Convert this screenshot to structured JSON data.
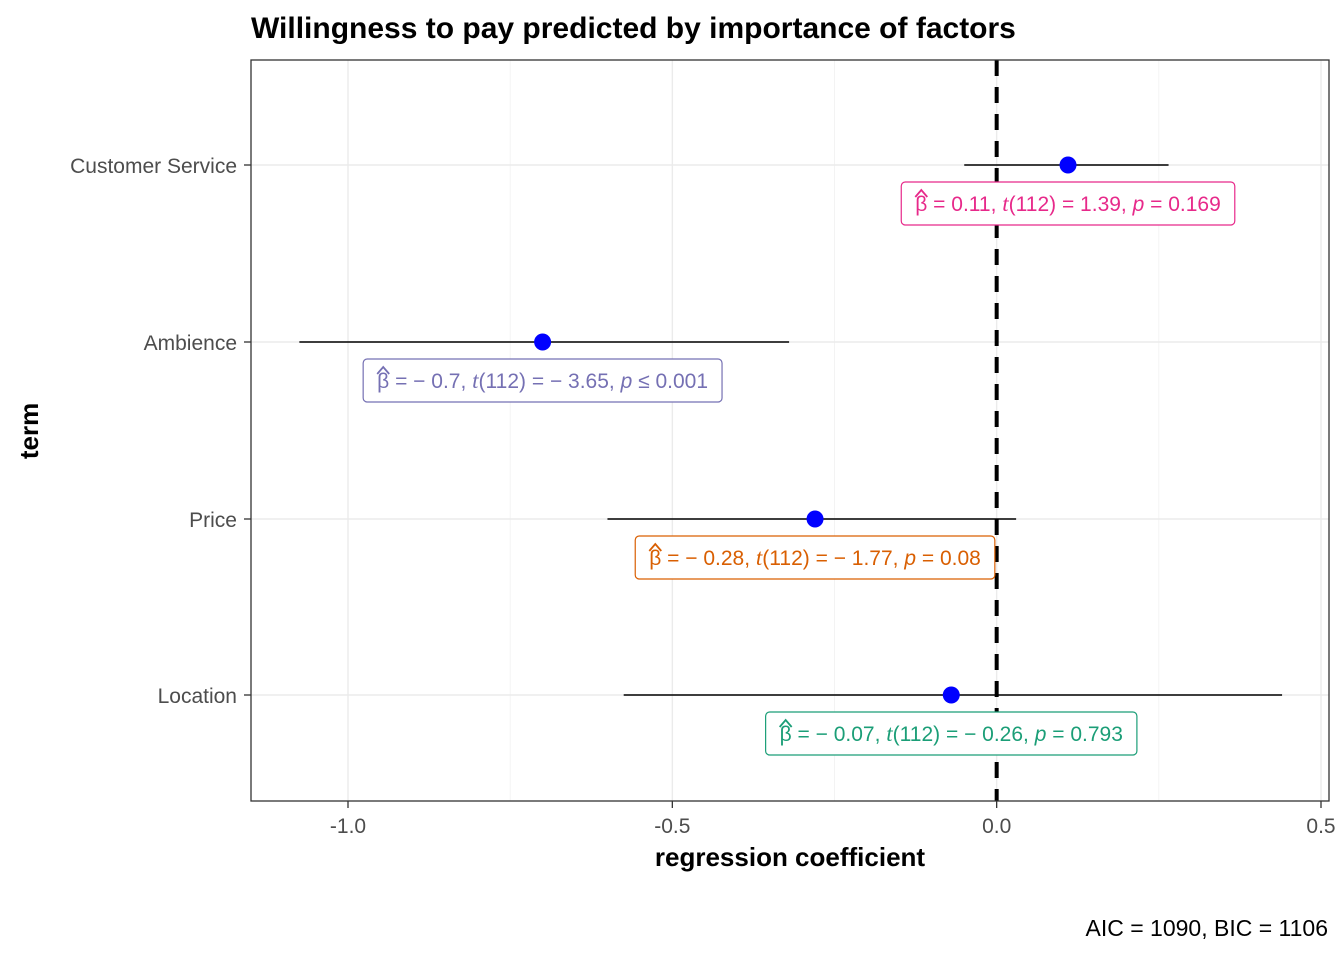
{
  "chart_data": {
    "type": "scatter",
    "title": "Willingness to pay predicted by importance of factors",
    "xlabel": "regression coefficient",
    "ylabel": "term",
    "xlim": [
      -1.15,
      0.51
    ],
    "xticks": [
      -1.0,
      -0.5,
      0.0,
      0.5
    ],
    "xtick_labels": [
      "-1.0",
      "-0.5",
      "0.0",
      "0.5"
    ],
    "reference_line": 0,
    "grid": true,
    "caption": "AIC = 1090, BIC = 1106",
    "terms": [
      {
        "label": "Customer Service",
        "estimate": 0.11,
        "ci_low": -0.05,
        "ci_high": 0.265,
        "color": "#e7298a",
        "annotation": {
          "beta": "0.11",
          "df": "112",
          "t": "1.39",
          "p_op": "=",
          "p": "0.169"
        }
      },
      {
        "label": "Ambience",
        "estimate": -0.7,
        "ci_low": -1.075,
        "ci_high": -0.32,
        "color": "#7570b3",
        "annotation": {
          "beta": "− 0.7",
          "df": "112",
          "t": "− 3.65",
          "p_op": "≤",
          "p": "0.001"
        }
      },
      {
        "label": "Price",
        "estimate": -0.28,
        "ci_low": -0.6,
        "ci_high": 0.03,
        "color": "#d95f02",
        "annotation": {
          "beta": "− 0.28",
          "df": "112",
          "t": "− 1.77",
          "p_op": "=",
          "p": "0.08"
        }
      },
      {
        "label": "Location",
        "estimate": -0.07,
        "ci_low": -0.575,
        "ci_high": 0.44,
        "color": "#1b9e77",
        "annotation": {
          "beta": "− 0.07",
          "df": "112",
          "t": "− 0.26",
          "p_op": "=",
          "p": "0.793"
        }
      }
    ],
    "point_color": "#0000ff"
  }
}
